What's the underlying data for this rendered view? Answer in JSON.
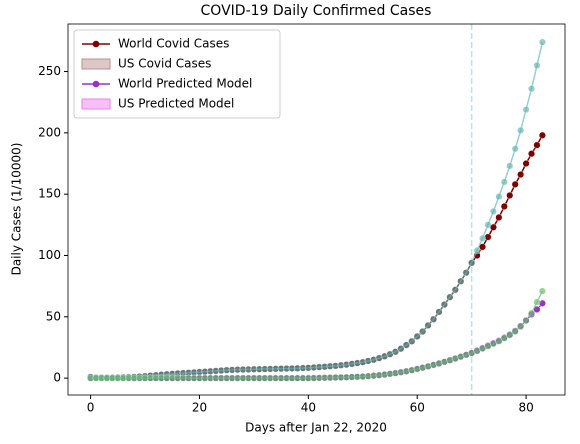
{
  "chart_data": {
    "type": "line",
    "title": "COVID-19 Daily Confirmed Cases",
    "xlabel": "Days after Jan 22, 2020",
    "ylabel": "Daily Cases (1/10000)",
    "x": [
      0,
      1,
      2,
      3,
      4,
      5,
      6,
      7,
      8,
      9,
      10,
      11,
      12,
      13,
      14,
      15,
      16,
      17,
      18,
      19,
      20,
      21,
      22,
      23,
      24,
      25,
      26,
      27,
      28,
      29,
      30,
      31,
      32,
      33,
      34,
      35,
      36,
      37,
      38,
      39,
      40,
      41,
      42,
      43,
      44,
      45,
      46,
      47,
      48,
      49,
      50,
      51,
      52,
      53,
      54,
      55,
      56,
      57,
      58,
      59,
      60,
      61,
      62,
      63,
      64,
      65,
      66,
      67,
      68,
      69,
      70,
      71,
      72,
      73,
      74,
      75,
      76,
      77,
      78,
      79,
      80,
      81,
      82,
      83
    ],
    "series": [
      {
        "name": "World Covid Cases",
        "color": "#800000",
        "style": "line",
        "values": [
          1,
          0.5,
          0.5,
          0.5,
          0.5,
          0.6,
          0.7,
          0.8,
          1,
          1.3,
          1.6,
          2,
          2.4,
          2.8,
          3.2,
          3.5,
          3.8,
          4.1,
          4.4,
          4.7,
          5,
          5.3,
          5.6,
          5.9,
          6.2,
          6.5,
          6.7,
          6.9,
          7,
          7.1,
          7.2,
          7.3,
          7.4,
          7.5,
          7.6,
          7.7,
          7.8,
          7.9,
          8,
          8.2,
          8.4,
          8.7,
          9,
          9.3,
          9.7,
          10,
          10.5,
          11,
          11.6,
          12.3,
          13,
          14,
          15,
          16.3,
          17.8,
          19.5,
          21.5,
          24,
          27,
          30,
          34,
          38,
          43,
          48,
          54,
          60,
          66,
          72,
          79,
          86,
          94,
          100,
          107,
          115,
          123,
          131,
          140,
          149,
          158,
          166,
          175,
          183,
          190,
          198
        ]
      },
      {
        "name": "US Covid Cases",
        "color": "#bc8f8f",
        "style": "patch"
      },
      {
        "name": "World Predicted Model",
        "color": "#9932cc",
        "style": "line",
        "values": [
          0,
          0,
          0,
          0,
          0,
          0,
          0,
          0,
          0,
          0,
          0,
          0,
          0,
          0,
          0,
          0,
          0,
          0,
          0,
          0,
          0,
          0,
          0,
          0,
          0,
          0,
          0,
          0,
          0,
          0,
          0,
          0,
          0,
          0,
          0,
          0,
          0,
          0,
          0,
          0,
          0,
          0.1,
          0.2,
          0.3,
          0.4,
          0.5,
          0.6,
          0.7,
          0.9,
          1.1,
          1.3,
          1.6,
          2,
          2.4,
          2.9,
          3.5,
          4.1,
          4.8,
          5.6,
          6.5,
          7.5,
          8.5,
          9.6,
          10.8,
          12,
          13.3,
          14.6,
          16,
          17.5,
          19,
          20.5,
          22.5,
          24.5,
          26.5,
          28.5,
          30.5,
          33,
          35.5,
          38.5,
          42.5,
          47,
          52,
          56,
          61
        ]
      },
      {
        "name": "US Predicted Model",
        "color": "#ee82ee",
        "style": "patch"
      },
      {
        "color": "#5fb3b3",
        "style": "line",
        "values": [
          1,
          0.5,
          0.5,
          0.5,
          0.5,
          0.6,
          0.7,
          0.8,
          1,
          1.3,
          1.6,
          2,
          2.4,
          2.8,
          3.2,
          3.5,
          3.8,
          4.1,
          4.4,
          4.7,
          5,
          5.3,
          5.6,
          5.9,
          6.2,
          6.5,
          6.7,
          6.9,
          7,
          7.1,
          7.2,
          7.3,
          7.4,
          7.5,
          7.6,
          7.7,
          7.8,
          7.9,
          8,
          8.2,
          8.4,
          8.7,
          9,
          9.3,
          9.7,
          10,
          10.5,
          11,
          11.6,
          12.3,
          13,
          14,
          15,
          16.3,
          17.8,
          19.5,
          21.5,
          24,
          27,
          30,
          34,
          38,
          43,
          48,
          54,
          60,
          66,
          72,
          79,
          86,
          94,
          104,
          114,
          125,
          136,
          148,
          160,
          173,
          187,
          202,
          219,
          236,
          255,
          274
        ]
      },
      {
        "color": "#66bb6a",
        "style": "line",
        "values": [
          0,
          0,
          0,
          0,
          0,
          0,
          0,
          0,
          0,
          0,
          0,
          0,
          0,
          0,
          0,
          0,
          0,
          0,
          0,
          0,
          0,
          0,
          0,
          0,
          0,
          0,
          0,
          0,
          0,
          0,
          0,
          0,
          0,
          0,
          0,
          0,
          0,
          0,
          0,
          0,
          0,
          0.1,
          0.2,
          0.3,
          0.4,
          0.5,
          0.6,
          0.7,
          0.9,
          1.1,
          1.3,
          1.6,
          2,
          2.4,
          2.9,
          3.5,
          4.1,
          4.8,
          5.6,
          6.5,
          7.5,
          8.5,
          9.6,
          10.8,
          12,
          13.3,
          14.6,
          16,
          17.5,
          19,
          20.5,
          22,
          24,
          26,
          28,
          30,
          32.5,
          35,
          38,
          42,
          47,
          53,
          62,
          71
        ]
      }
    ],
    "vline": 70,
    "vline_color": "#aee8ee",
    "xlim": [
      -4.15,
      87.15
    ],
    "xticks": [
      0,
      20,
      40,
      60,
      80
    ],
    "ylim": [
      -13.75,
      288.75
    ],
    "yticks": [
      0,
      50,
      100,
      150,
      200,
      250
    ],
    "legend": "upper left"
  }
}
